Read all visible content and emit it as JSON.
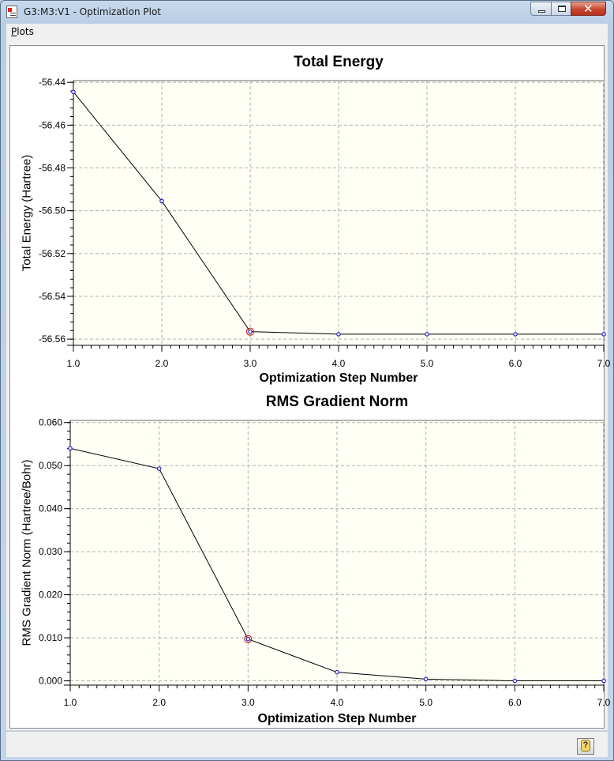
{
  "window": {
    "title": "G3:M3:V1 - Optimization Plot"
  },
  "menu": {
    "items": [
      "Plots"
    ]
  },
  "icons": {
    "app": "plot-app-icon",
    "minimize": "minimize-icon",
    "maximize": "maximize-icon",
    "close": "close-icon",
    "help": "help-icon"
  },
  "colors": {
    "plot_background": "#fffff6",
    "grid": "#b0b0b0",
    "line": "#000000",
    "point": "#2222cc",
    "current_point": "#cc2222"
  },
  "chart_data": [
    {
      "type": "line",
      "title": "Total Energy",
      "xlabel": "Optimization Step Number",
      "ylabel": "Total Energy (Hartree)",
      "x": [
        1,
        2,
        3,
        4,
        5,
        6,
        7
      ],
      "values": [
        -56.4445,
        -56.4955,
        -56.5565,
        -56.5577,
        -56.5577,
        -56.5577,
        -56.5577
      ],
      "current_step": 3,
      "xlim": [
        1.0,
        7.0
      ],
      "ylim": [
        -56.5629,
        -56.4392
      ],
      "xticks": [
        "1.0",
        "2.0",
        "3.0",
        "4.0",
        "5.0",
        "6.0",
        "7.0"
      ],
      "yticks": [
        "-56.44",
        "-56.46",
        "-56.48",
        "-56.50",
        "-56.52",
        "-56.54",
        "-56.56"
      ],
      "grid": true
    },
    {
      "type": "line",
      "title": "RMS Gradient Norm",
      "xlabel": "Optimization Step Number",
      "ylabel": "RMS Gradient Norm (Hartree/Bohr)",
      "x": [
        1,
        2,
        3,
        4,
        5,
        6,
        7
      ],
      "values": [
        0.054,
        0.0493,
        0.0097,
        0.002,
        0.0004,
        0.0,
        0.0
      ],
      "current_step": 3,
      "xlim": [
        1.0,
        7.0
      ],
      "ylim": [
        -0.001,
        0.0605
      ],
      "xticks": [
        "1.0",
        "2.0",
        "3.0",
        "4.0",
        "5.0",
        "6.0",
        "7.0"
      ],
      "yticks": [
        "0.060",
        "0.050",
        "0.040",
        "0.030",
        "0.020",
        "0.010",
        "0.000"
      ],
      "grid": true
    }
  ]
}
